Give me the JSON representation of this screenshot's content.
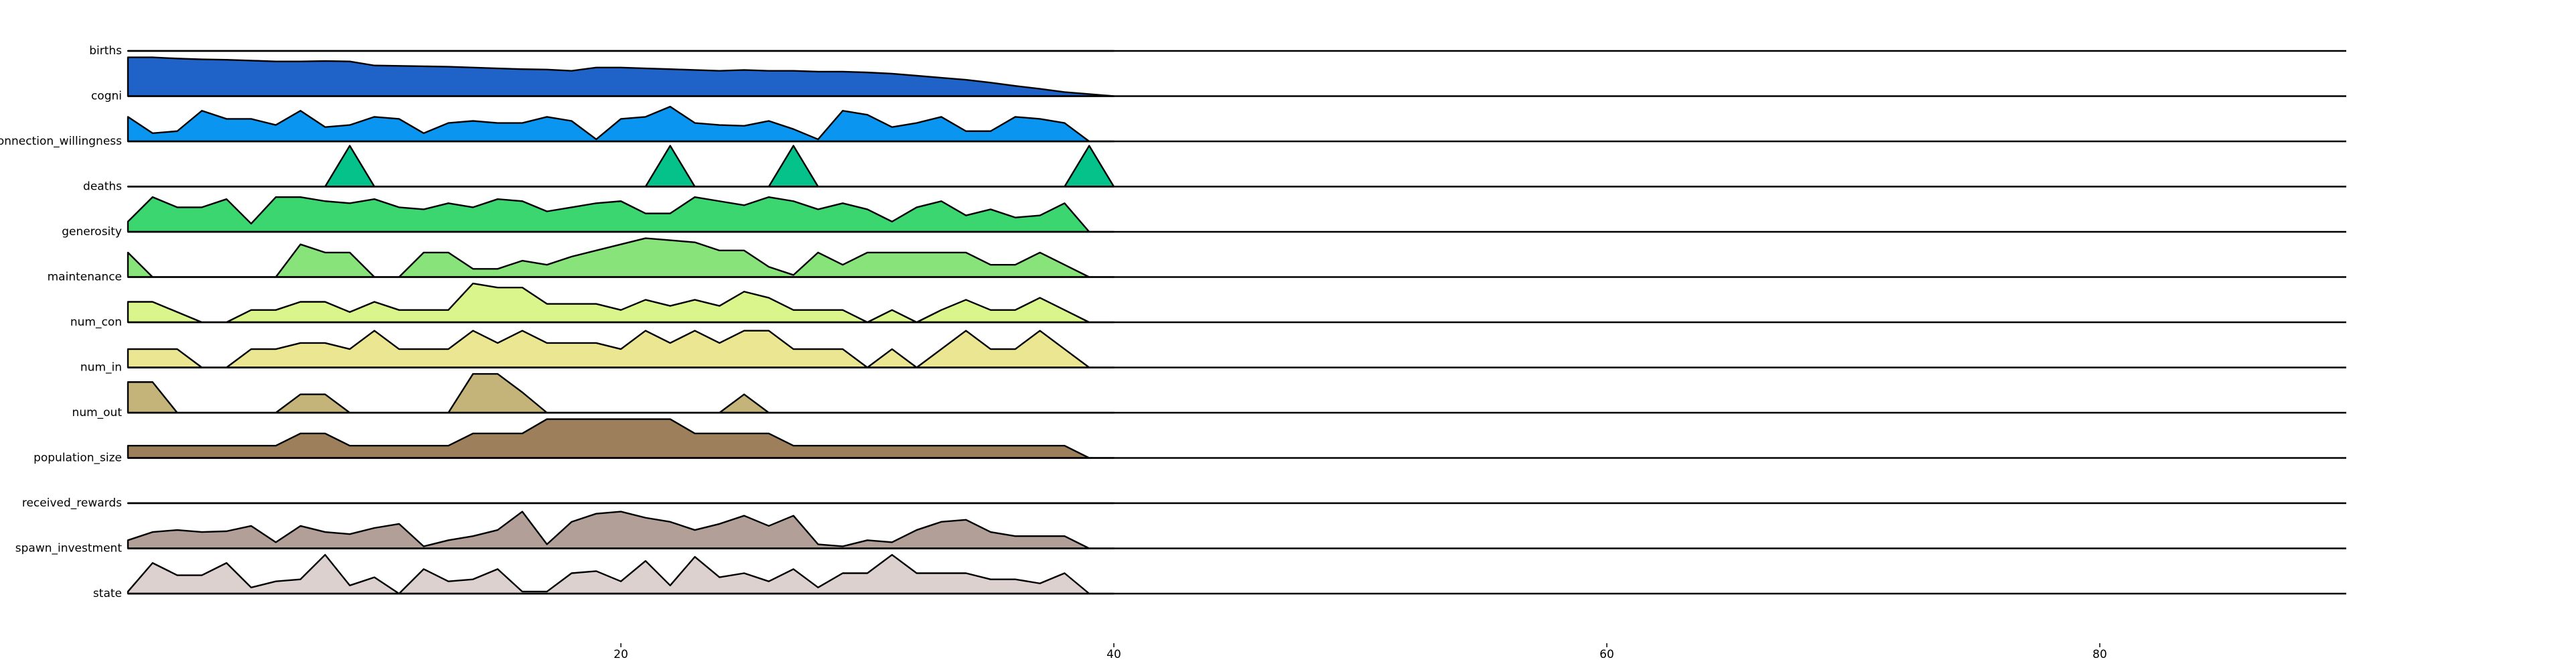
{
  "chart_data": {
    "type": "ridgeline",
    "x": [
      0,
      1,
      2,
      3,
      4,
      5,
      6,
      7,
      8,
      9,
      10,
      11,
      12,
      13,
      14,
      15,
      16,
      17,
      18,
      19,
      20,
      21,
      22,
      23,
      24,
      25,
      26,
      27,
      28,
      29,
      30,
      31,
      32,
      33,
      34,
      35,
      36,
      37,
      38,
      39,
      40
    ],
    "xlim": [
      0,
      90
    ],
    "xticks": [
      20,
      40,
      60,
      80
    ],
    "series": [
      {
        "name": "births",
        "color": "#1a3a9a",
        "values": [
          0,
          0,
          0,
          0,
          0,
          0,
          0,
          0,
          0,
          0,
          0,
          0,
          0,
          0,
          0,
          0,
          0,
          0,
          0,
          0,
          0,
          0,
          0,
          0,
          0,
          0,
          0,
          0,
          0,
          0,
          0,
          0,
          0,
          0,
          0,
          0,
          0,
          0,
          0,
          0,
          0
        ]
      },
      {
        "name": "cogni",
        "color": "#1f63c8",
        "values": [
          0.95,
          0.95,
          0.92,
          0.9,
          0.89,
          0.87,
          0.85,
          0.85,
          0.86,
          0.85,
          0.75,
          0.74,
          0.73,
          0.72,
          0.7,
          0.68,
          0.66,
          0.65,
          0.62,
          0.7,
          0.7,
          0.68,
          0.66,
          0.64,
          0.62,
          0.64,
          0.62,
          0.62,
          0.6,
          0.6,
          0.58,
          0.55,
          0.5,
          0.45,
          0.4,
          0.33,
          0.25,
          0.18,
          0.1,
          0.05,
          0
        ]
      },
      {
        "name": "connection_willingness",
        "color": "#0a96f0",
        "values": [
          0.6,
          0.2,
          0.25,
          0.75,
          0.55,
          0.55,
          0.4,
          0.75,
          0.35,
          0.4,
          0.6,
          0.55,
          0.2,
          0.45,
          0.5,
          0.45,
          0.45,
          0.6,
          0.5,
          0.05,
          0.55,
          0.6,
          0.85,
          0.45,
          0.4,
          0.38,
          0.5,
          0.3,
          0.05,
          0.75,
          0.65,
          0.35,
          0.45,
          0.6,
          0.25,
          0.25,
          0.6,
          0.55,
          0.45,
          0,
          0
        ]
      },
      {
        "name": "deaths",
        "color": "#05c28a",
        "values": [
          0,
          0,
          0,
          0,
          0,
          0,
          0,
          0,
          0,
          1,
          0,
          0,
          0,
          0,
          0,
          0,
          0,
          0,
          0,
          0,
          0,
          0,
          1,
          0,
          0,
          0,
          0,
          1,
          0,
          0,
          0,
          0,
          0,
          0,
          0,
          0,
          0,
          0,
          0,
          1,
          0
        ]
      },
      {
        "name": "generosity",
        "color": "#3bd670",
        "values": [
          0.25,
          0.85,
          0.6,
          0.6,
          0.8,
          0.2,
          0.85,
          0.85,
          0.75,
          0.7,
          0.8,
          0.6,
          0.55,
          0.7,
          0.6,
          0.8,
          0.75,
          0.5,
          0.6,
          0.7,
          0.75,
          0.45,
          0.45,
          0.85,
          0.75,
          0.65,
          0.85,
          0.75,
          0.55,
          0.7,
          0.55,
          0.25,
          0.6,
          0.75,
          0.4,
          0.55,
          0.35,
          0.4,
          0.7,
          0,
          0
        ]
      },
      {
        "name": "maintenance",
        "color": "#88e47a",
        "values": [
          0.6,
          0,
          0,
          0,
          0,
          0,
          0,
          0.8,
          0.6,
          0.6,
          0,
          0,
          0.6,
          0.6,
          0.2,
          0.2,
          0.4,
          0.3,
          0.5,
          0.65,
          0.8,
          0.95,
          0.9,
          0.85,
          0.65,
          0.65,
          0.25,
          0.05,
          0.6,
          0.3,
          0.6,
          0.6,
          0.6,
          0.6,
          0.6,
          0.3,
          0.3,
          0.6,
          0.3,
          0,
          0
        ]
      },
      {
        "name": "num_con",
        "color": "#d9f58c",
        "values": [
          0.5,
          0.5,
          0.25,
          0,
          0,
          0.3,
          0.3,
          0.5,
          0.5,
          0.25,
          0.5,
          0.3,
          0.3,
          0.3,
          0.95,
          0.85,
          0.85,
          0.45,
          0.45,
          0.45,
          0.3,
          0.55,
          0.4,
          0.55,
          0.4,
          0.75,
          0.6,
          0.3,
          0.3,
          0.3,
          0,
          0.3,
          0,
          0.3,
          0.55,
          0.3,
          0.3,
          0.6,
          0.3,
          0,
          0
        ]
      },
      {
        "name": "num_in",
        "color": "#ebe691",
        "values": [
          0.45,
          0.45,
          0.45,
          0,
          0,
          0.45,
          0.45,
          0.6,
          0.6,
          0.45,
          0.9,
          0.45,
          0.45,
          0.45,
          0.9,
          0.6,
          0.9,
          0.6,
          0.6,
          0.6,
          0.45,
          0.9,
          0.6,
          0.9,
          0.6,
          0.9,
          0.9,
          0.45,
          0.45,
          0.45,
          0,
          0.45,
          0,
          0.45,
          0.9,
          0.45,
          0.45,
          0.9,
          0.45,
          0,
          0
        ]
      },
      {
        "name": "num_out",
        "color": "#c4b47a",
        "values": [
          0.75,
          0.75,
          0,
          0,
          0,
          0,
          0,
          0.45,
          0.45,
          0,
          0,
          0,
          0,
          0,
          0.95,
          0.95,
          0.5,
          0,
          0,
          0,
          0,
          0,
          0,
          0,
          0,
          0.45,
          0,
          0,
          0,
          0,
          0,
          0,
          0,
          0,
          0,
          0,
          0,
          0,
          0,
          0,
          0
        ]
      },
      {
        "name": "population_size",
        "color": "#9d7f5c",
        "values": [
          0.3,
          0.3,
          0.3,
          0.3,
          0.3,
          0.3,
          0.3,
          0.6,
          0.6,
          0.3,
          0.3,
          0.3,
          0.3,
          0.3,
          0.6,
          0.6,
          0.6,
          0.95,
          0.95,
          0.95,
          0.95,
          0.95,
          0.95,
          0.6,
          0.6,
          0.6,
          0.6,
          0.3,
          0.3,
          0.3,
          0.3,
          0.3,
          0.3,
          0.3,
          0.3,
          0.3,
          0.3,
          0.3,
          0.3,
          0,
          0
        ]
      },
      {
        "name": "received_rewards",
        "color": "#a89a86",
        "values": [
          0,
          0,
          0,
          0,
          0,
          0,
          0,
          0,
          0,
          0,
          0,
          0,
          0,
          0,
          0,
          0,
          0,
          0,
          0,
          0,
          0,
          0,
          0,
          0,
          0,
          0,
          0,
          0,
          0,
          0,
          0,
          0,
          0,
          0,
          0,
          0,
          0,
          0,
          0,
          0,
          0
        ]
      },
      {
        "name": "spawn_investment",
        "color": "#b19f98",
        "values": [
          0.2,
          0.4,
          0.45,
          0.4,
          0.42,
          0.55,
          0.15,
          0.55,
          0.4,
          0.35,
          0.5,
          0.6,
          0.05,
          0.2,
          0.3,
          0.45,
          0.9,
          0.1,
          0.65,
          0.85,
          0.9,
          0.75,
          0.65,
          0.45,
          0.6,
          0.8,
          0.55,
          0.8,
          0.1,
          0.05,
          0.2,
          0.15,
          0.45,
          0.65,
          0.7,
          0.4,
          0.3,
          0.3,
          0.3,
          0,
          0
        ]
      },
      {
        "name": "state",
        "color": "#dcd1ce",
        "values": [
          0.05,
          0.75,
          0.45,
          0.45,
          0.75,
          0.15,
          0.3,
          0.35,
          0.95,
          0.2,
          0.4,
          0,
          0.6,
          0.3,
          0.35,
          0.6,
          0.05,
          0.05,
          0.5,
          0.55,
          0.3,
          0.8,
          0.2,
          0.9,
          0.4,
          0.5,
          0.3,
          0.6,
          0.15,
          0.5,
          0.5,
          0.95,
          0.5,
          0.5,
          0.5,
          0.35,
          0.35,
          0.25,
          0.5,
          0,
          0
        ]
      }
    ]
  }
}
